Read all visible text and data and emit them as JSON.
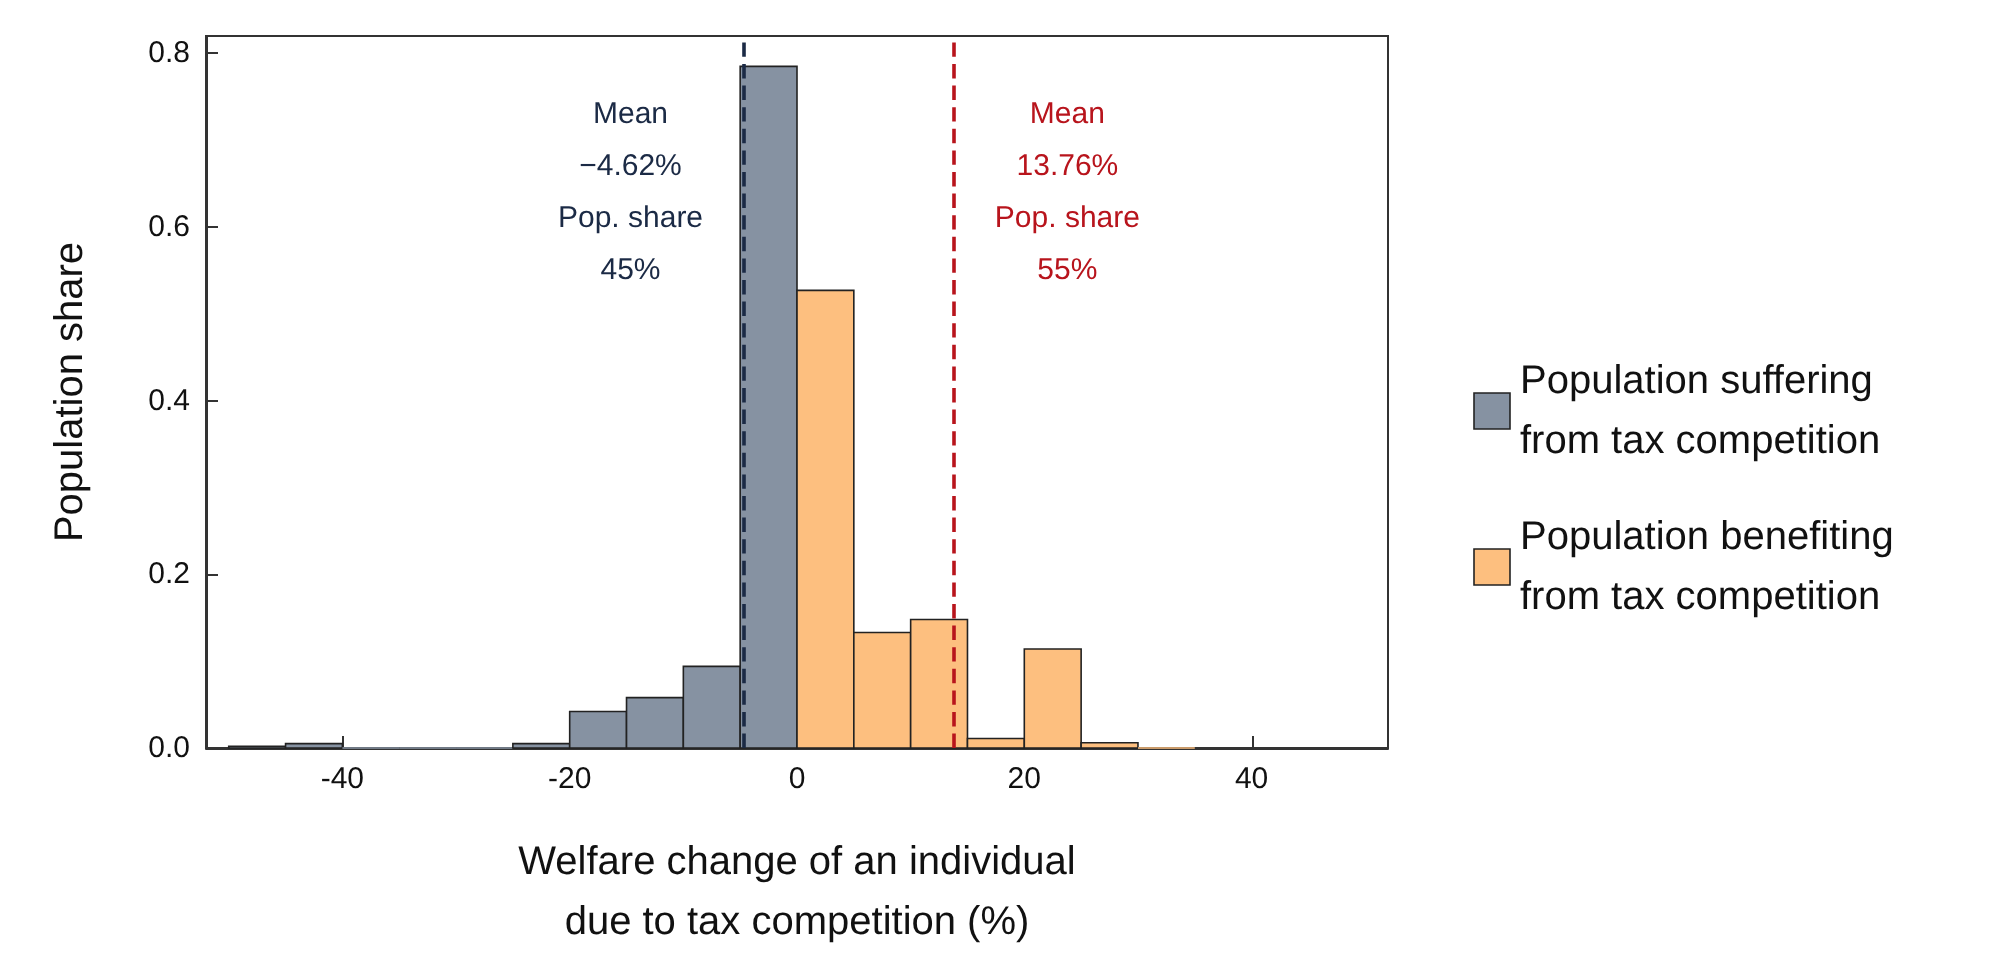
{
  "chart_data": {
    "type": "histogram",
    "xlabel": "Welfare change of an individual\ndue to tax competition (%)",
    "ylabel": "Population share",
    "bins": [
      -50,
      -45,
      -40,
      -35,
      -30,
      -25,
      -20,
      -15,
      -10,
      -5,
      0,
      5,
      10,
      15,
      20,
      25,
      30,
      35
    ],
    "series": [
      {
        "name": "Population suffering from tax competition",
        "color": "#8692a2",
        "values": [
          0.002,
          0.005,
          0,
          0,
          0,
          0.005,
          0.042,
          0.058,
          0.094,
          0.785,
          null,
          null,
          null,
          null,
          null,
          null,
          null
        ]
      },
      {
        "name": "Population benefiting from tax competition",
        "color": "#fdbf7f",
        "values": [
          null,
          null,
          null,
          null,
          null,
          null,
          null,
          null,
          null,
          null,
          0.527,
          0.133,
          0.148,
          0.011,
          0.114,
          0.006,
          0
        ]
      }
    ],
    "xlim": [
      -52,
      52
    ],
    "xticks": [
      -40,
      -20,
      0,
      20,
      40
    ],
    "ylim": [
      0,
      0.82
    ],
    "yticks": [
      {
        "value": 0,
        "label": "0.0"
      },
      0.2,
      0.4,
      0.6,
      0.8
    ],
    "ref_lines": [
      {
        "axis": "x",
        "value": -4.62,
        "label": "Mean\n−4.62%\nPop. share\n45%",
        "color": "#1b2a45",
        "line_style": "dashed"
      },
      {
        "axis": "x",
        "value": 13.76,
        "label": "Mean\n13.76%\nPop. share\n55%",
        "color": "#b8141c",
        "line_style": "dashed"
      }
    ],
    "legend": "right"
  }
}
